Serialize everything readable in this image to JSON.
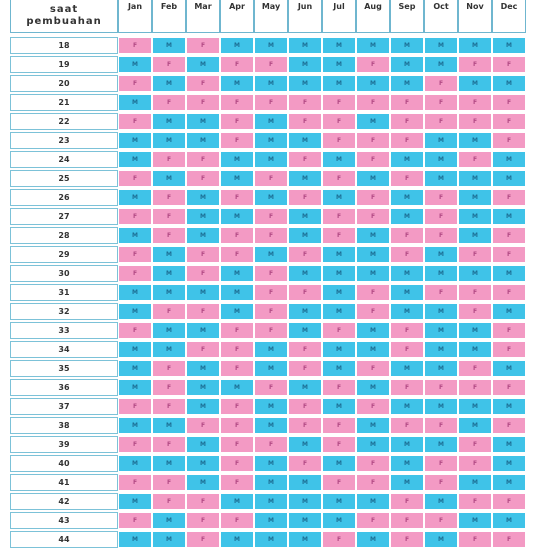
{
  "colors": {
    "M": "#3fc3e8",
    "F": "#f39ac4",
    "M_text": "#1d6f95",
    "F_text": "#b34a85"
  },
  "header": {
    "line1": "saat",
    "line2": "pembuahan"
  },
  "chart_data": {
    "type": "table",
    "months": [
      "Jan",
      "Feb",
      "Mar",
      "Apr",
      "May",
      "Jun",
      "Jul",
      "Aug",
      "Sep",
      "Oct",
      "Nov",
      "Dec"
    ],
    "rows": [
      {
        "age": "18",
        "cells": [
          "F",
          "M",
          "F",
          "M",
          "M",
          "M",
          "M",
          "M",
          "M",
          "M",
          "M",
          "M"
        ]
      },
      {
        "age": "19",
        "cells": [
          "M",
          "F",
          "M",
          "F",
          "F",
          "M",
          "M",
          "F",
          "M",
          "M",
          "F",
          "F"
        ]
      },
      {
        "age": "20",
        "cells": [
          "F",
          "M",
          "F",
          "M",
          "M",
          "M",
          "M",
          "M",
          "M",
          "F",
          "M",
          "M"
        ]
      },
      {
        "age": "21",
        "cells": [
          "M",
          "F",
          "F",
          "F",
          "F",
          "F",
          "F",
          "F",
          "F",
          "F",
          "F",
          "F"
        ]
      },
      {
        "age": "22",
        "cells": [
          "F",
          "M",
          "M",
          "F",
          "M",
          "F",
          "F",
          "M",
          "F",
          "F",
          "F",
          "F"
        ]
      },
      {
        "age": "23",
        "cells": [
          "M",
          "M",
          "M",
          "F",
          "M",
          "M",
          "F",
          "F",
          "F",
          "M",
          "M",
          "F"
        ]
      },
      {
        "age": "24",
        "cells": [
          "M",
          "F",
          "F",
          "M",
          "M",
          "F",
          "M",
          "F",
          "M",
          "M",
          "F",
          "M"
        ]
      },
      {
        "age": "25",
        "cells": [
          "F",
          "M",
          "F",
          "M",
          "F",
          "M",
          "F",
          "M",
          "F",
          "M",
          "M",
          "M"
        ]
      },
      {
        "age": "26",
        "cells": [
          "M",
          "F",
          "M",
          "F",
          "M",
          "F",
          "M",
          "F",
          "M",
          "F",
          "M",
          "F"
        ]
      },
      {
        "age": "27",
        "cells": [
          "F",
          "F",
          "M",
          "M",
          "F",
          "M",
          "F",
          "F",
          "M",
          "F",
          "M",
          "M"
        ]
      },
      {
        "age": "28",
        "cells": [
          "M",
          "F",
          "M",
          "F",
          "F",
          "M",
          "F",
          "M",
          "F",
          "F",
          "M",
          "F"
        ]
      },
      {
        "age": "29",
        "cells": [
          "F",
          "M",
          "F",
          "F",
          "M",
          "F",
          "M",
          "M",
          "F",
          "M",
          "F",
          "F"
        ]
      },
      {
        "age": "30",
        "cells": [
          "F",
          "M",
          "F",
          "M",
          "F",
          "M",
          "M",
          "M",
          "M",
          "M",
          "M",
          "M"
        ]
      },
      {
        "age": "31",
        "cells": [
          "M",
          "M",
          "M",
          "M",
          "F",
          "F",
          "M",
          "F",
          "M",
          "F",
          "F",
          "F"
        ]
      },
      {
        "age": "32",
        "cells": [
          "M",
          "F",
          "F",
          "M",
          "F",
          "M",
          "M",
          "F",
          "M",
          "M",
          "F",
          "M"
        ]
      },
      {
        "age": "33",
        "cells": [
          "F",
          "M",
          "M",
          "F",
          "F",
          "M",
          "F",
          "M",
          "F",
          "M",
          "M",
          "F"
        ]
      },
      {
        "age": "34",
        "cells": [
          "M",
          "M",
          "F",
          "F",
          "M",
          "F",
          "M",
          "M",
          "F",
          "M",
          "M",
          "F"
        ]
      },
      {
        "age": "35",
        "cells": [
          "M",
          "F",
          "M",
          "F",
          "M",
          "F",
          "M",
          "F",
          "M",
          "M",
          "F",
          "M"
        ]
      },
      {
        "age": "36",
        "cells": [
          "M",
          "F",
          "M",
          "M",
          "F",
          "M",
          "F",
          "M",
          "F",
          "F",
          "F",
          "F"
        ]
      },
      {
        "age": "37",
        "cells": [
          "F",
          "F",
          "M",
          "F",
          "M",
          "F",
          "M",
          "F",
          "M",
          "M",
          "M",
          "M"
        ]
      },
      {
        "age": "38",
        "cells": [
          "M",
          "M",
          "F",
          "F",
          "M",
          "F",
          "F",
          "M",
          "F",
          "F",
          "M",
          "F"
        ]
      },
      {
        "age": "39",
        "cells": [
          "F",
          "F",
          "M",
          "F",
          "F",
          "M",
          "F",
          "M",
          "M",
          "M",
          "F",
          "M"
        ]
      },
      {
        "age": "40",
        "cells": [
          "M",
          "M",
          "M",
          "F",
          "M",
          "F",
          "M",
          "F",
          "M",
          "F",
          "F",
          "M"
        ]
      },
      {
        "age": "41",
        "cells": [
          "F",
          "F",
          "M",
          "F",
          "M",
          "M",
          "F",
          "F",
          "M",
          "F",
          "M",
          "M"
        ]
      },
      {
        "age": "42",
        "cells": [
          "M",
          "F",
          "F",
          "M",
          "M",
          "M",
          "M",
          "M",
          "F",
          "M",
          "F",
          "F"
        ]
      },
      {
        "age": "43",
        "cells": [
          "F",
          "M",
          "F",
          "F",
          "M",
          "M",
          "M",
          "F",
          "F",
          "F",
          "M",
          "M"
        ]
      },
      {
        "age": "44",
        "cells": [
          "M",
          "M",
          "F",
          "M",
          "M",
          "M",
          "F",
          "M",
          "F",
          "M",
          "F",
          "F"
        ]
      }
    ]
  }
}
